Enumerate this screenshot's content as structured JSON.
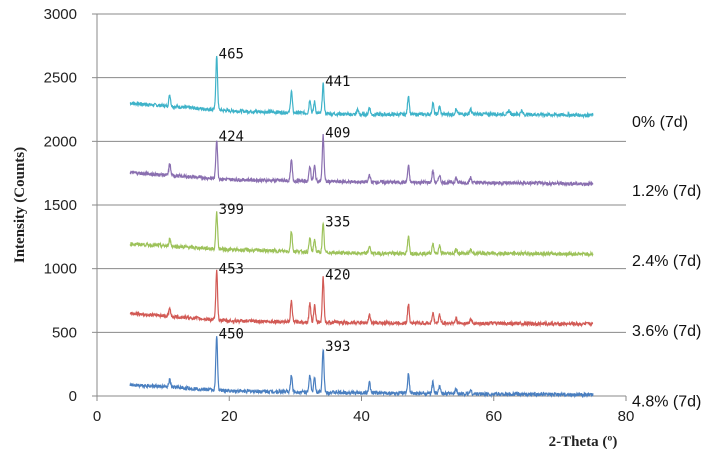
{
  "chart_data": {
    "type": "line",
    "title": "",
    "xlabel": "2-Theta (º)",
    "ylabel": "Intensity (Counts)",
    "xlim": [
      0,
      80
    ],
    "ylim": [
      0,
      3000
    ],
    "x_ticks": [
      "0",
      "20",
      "40",
      "60",
      "80"
    ],
    "y_ticks": [
      "0",
      "500",
      "1000",
      "1500",
      "2000",
      "2500",
      "3000"
    ],
    "grid": "horizontal",
    "legend": "right",
    "x_range": [
      5,
      75
    ],
    "series": [
      {
        "name": "0% (7d)",
        "color": "#3fb3c9",
        "baseline": [
          [
            5,
            2300
          ],
          [
            20,
            2240
          ],
          [
            40,
            2210
          ],
          [
            60,
            2215
          ],
          [
            75,
            2205
          ]
        ],
        "peaks": [
          [
            11,
            90
          ],
          [
            18.1,
            420
          ],
          [
            29.4,
            170
          ],
          [
            32.2,
            110
          ],
          [
            32.9,
            90
          ],
          [
            34.2,
            230
          ],
          [
            39.4,
            40
          ],
          [
            41.2,
            60
          ],
          [
            47.1,
            150
          ],
          [
            50.8,
            90
          ],
          [
            51.8,
            60
          ],
          [
            54.3,
            40
          ],
          [
            56.5,
            40
          ],
          [
            62.3,
            30
          ],
          [
            64.2,
            30
          ]
        ],
        "labels": [
          {
            "x": 18.1,
            "text": "465"
          },
          {
            "x": 34.2,
            "text": "441"
          }
        ]
      },
      {
        "name": "1.2% (7d)",
        "color": "#8a6fb0",
        "baseline": [
          [
            5,
            1755
          ],
          [
            20,
            1700
          ],
          [
            40,
            1680
          ],
          [
            60,
            1675
          ],
          [
            75,
            1665
          ]
        ],
        "peaks": [
          [
            11,
            90
          ],
          [
            18.1,
            310
          ],
          [
            29.4,
            160
          ],
          [
            32.2,
            120
          ],
          [
            32.9,
            120
          ],
          [
            34.2,
            360
          ],
          [
            41.2,
            60
          ],
          [
            47.1,
            130
          ],
          [
            50.8,
            90
          ],
          [
            51.8,
            60
          ],
          [
            54.3,
            40
          ],
          [
            56.5,
            40
          ]
        ],
        "labels": [
          {
            "x": 18.1,
            "text": "424"
          },
          {
            "x": 34.2,
            "text": "409"
          }
        ]
      },
      {
        "name": "2.4% (7d)",
        "color": "#9dc25a",
        "baseline": [
          [
            5,
            1195
          ],
          [
            20,
            1150
          ],
          [
            40,
            1120
          ],
          [
            60,
            1120
          ],
          [
            75,
            1115
          ]
        ],
        "peaks": [
          [
            11,
            60
          ],
          [
            18.1,
            290
          ],
          [
            29.4,
            160
          ],
          [
            32.2,
            110
          ],
          [
            32.9,
            100
          ],
          [
            34.2,
            220
          ],
          [
            41.2,
            60
          ],
          [
            47.1,
            130
          ],
          [
            50.8,
            80
          ],
          [
            51.8,
            60
          ],
          [
            54.3,
            30
          ],
          [
            56.5,
            30
          ]
        ],
        "labels": [
          {
            "x": 18.1,
            "text": "399"
          },
          {
            "x": 34.2,
            "text": "335"
          }
        ]
      },
      {
        "name": "3.6% (7d)",
        "color": "#d25a55",
        "baseline": [
          [
            5,
            650
          ],
          [
            20,
            590
          ],
          [
            40,
            575
          ],
          [
            60,
            570
          ],
          [
            75,
            565
          ]
        ],
        "peaks": [
          [
            11,
            60
          ],
          [
            18.1,
            380
          ],
          [
            29.4,
            160
          ],
          [
            32.2,
            150
          ],
          [
            32.9,
            130
          ],
          [
            34.2,
            350
          ],
          [
            41.2,
            60
          ],
          [
            47.1,
            150
          ],
          [
            50.8,
            80
          ],
          [
            51.8,
            70
          ],
          [
            54.3,
            40
          ],
          [
            56.5,
            30
          ]
        ],
        "labels": [
          {
            "x": 18.1,
            "text": "453"
          },
          {
            "x": 34.2,
            "text": "420"
          }
        ]
      },
      {
        "name": "4.8% (7d)",
        "color": "#4a7fc0",
        "baseline": [
          [
            5,
            90
          ],
          [
            20,
            40
          ],
          [
            40,
            25
          ],
          [
            60,
            15
          ],
          [
            75,
            10
          ]
        ],
        "peaks": [
          [
            11,
            60
          ],
          [
            18.1,
            420
          ],
          [
            29.4,
            130
          ],
          [
            32.2,
            130
          ],
          [
            32.9,
            110
          ],
          [
            34.2,
            340
          ],
          [
            41.2,
            80
          ],
          [
            47.1,
            150
          ],
          [
            50.8,
            90
          ],
          [
            51.8,
            60
          ],
          [
            54.3,
            40
          ],
          [
            56.5,
            30
          ]
        ],
        "labels": [
          {
            "x": 18.1,
            "text": "450"
          },
          {
            "x": 34.2,
            "text": "393"
          }
        ]
      }
    ]
  }
}
